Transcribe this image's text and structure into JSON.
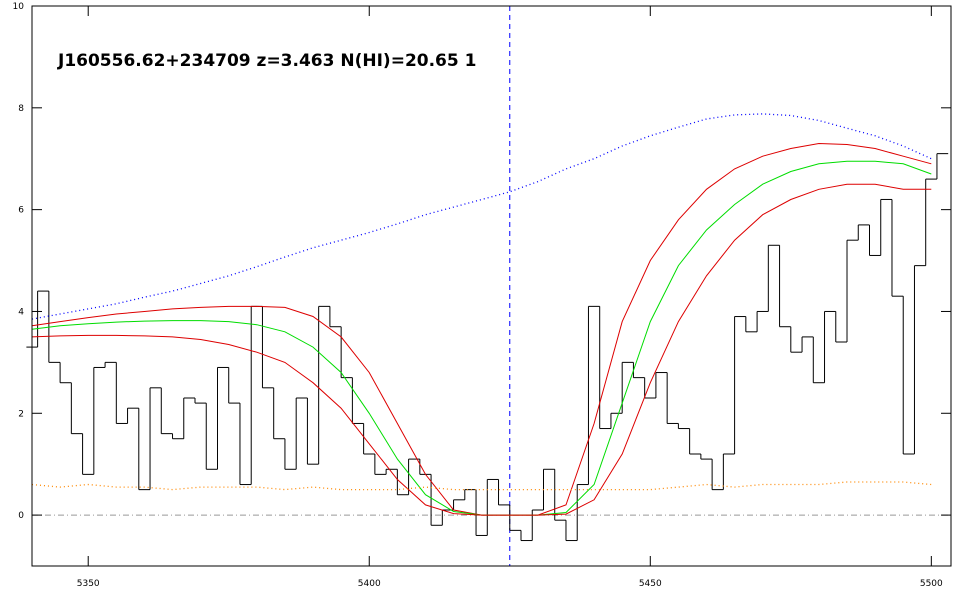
{
  "chart_data": {
    "type": "line",
    "annotation": "J160556.62+234709 z=3.463 N(HI)=20.65 1",
    "xlim": [
      5340,
      5503.5
    ],
    "ylim": [
      -1,
      10
    ],
    "xticks": [
      5350,
      5400,
      5450,
      5500
    ],
    "yticks": [
      0,
      2,
      4,
      6,
      8,
      10
    ],
    "vline": {
      "x": 5425,
      "color": "#0000ff"
    },
    "hline": {
      "y": 0,
      "color": "#999999"
    },
    "series": [
      {
        "style": "step",
        "color": "#000000",
        "x": [
          5340,
          5342,
          5344,
          5346,
          5348,
          5350,
          5352,
          5354,
          5356,
          5358,
          5360,
          5362,
          5364,
          5366,
          5368,
          5370,
          5372,
          5374,
          5376,
          5378,
          5380,
          5382,
          5384,
          5386,
          5388,
          5390,
          5392,
          5394,
          5396,
          5398,
          5400,
          5402,
          5404,
          5406,
          5408,
          5410,
          5412,
          5414,
          5416,
          5418,
          5420,
          5422,
          5424,
          5426,
          5428,
          5430,
          5432,
          5434,
          5436,
          5438,
          5440,
          5442,
          5444,
          5446,
          5448,
          5450,
          5452,
          5454,
          5456,
          5458,
          5460,
          5462,
          5464,
          5466,
          5468,
          5470,
          5472,
          5474,
          5476,
          5478,
          5480,
          5482,
          5484,
          5486,
          5488,
          5490,
          5492,
          5494,
          5496,
          5498,
          5500,
          5502
        ],
        "values": [
          3.3,
          4.4,
          3.0,
          2.6,
          1.6,
          0.8,
          2.9,
          3.0,
          1.8,
          2.1,
          0.5,
          2.5,
          1.6,
          1.5,
          2.3,
          2.2,
          0.9,
          2.9,
          2.2,
          0.6,
          4.1,
          2.5,
          1.5,
          0.9,
          2.3,
          1.0,
          4.1,
          3.7,
          2.7,
          1.8,
          1.2,
          0.8,
          0.9,
          0.4,
          1.1,
          0.8,
          -0.2,
          0.1,
          0.3,
          0.5,
          -0.4,
          0.7,
          0.2,
          -0.3,
          -0.5,
          0.1,
          0.9,
          -0.1,
          -0.5,
          0.6,
          4.1,
          1.7,
          2.0,
          3.0,
          2.7,
          2.3,
          2.8,
          1.8,
          1.7,
          1.2,
          1.1,
          0.5,
          1.2,
          3.9,
          3.6,
          4.0,
          5.3,
          3.7,
          3.2,
          3.5,
          2.6,
          4.0,
          3.4,
          5.4,
          5.7,
          5.1,
          6.2,
          4.3,
          1.2,
          4.9,
          6.6,
          7.1
        ]
      },
      {
        "style": "dotted",
        "color": "#0000ff",
        "x": [
          5340,
          5345,
          5350,
          5355,
          5360,
          5365,
          5370,
          5375,
          5380,
          5385,
          5390,
          5395,
          5400,
          5405,
          5410,
          5415,
          5420,
          5425,
          5430,
          5435,
          5440,
          5445,
          5450,
          5455,
          5460,
          5465,
          5470,
          5475,
          5480,
          5485,
          5490,
          5495,
          5500
        ],
        "values": [
          3.85,
          3.95,
          4.05,
          4.15,
          4.28,
          4.4,
          4.55,
          4.7,
          4.88,
          5.07,
          5.25,
          5.4,
          5.55,
          5.72,
          5.9,
          6.05,
          6.2,
          6.35,
          6.55,
          6.8,
          7.0,
          7.25,
          7.45,
          7.62,
          7.78,
          7.86,
          7.88,
          7.85,
          7.75,
          7.6,
          7.45,
          7.25,
          7.0
        ]
      },
      {
        "style": "solid",
        "color": "#dd0000",
        "x": [
          5340,
          5345,
          5350,
          5355,
          5360,
          5365,
          5370,
          5375,
          5380,
          5385,
          5390,
          5395,
          5400,
          5405,
          5410,
          5415,
          5420,
          5425,
          5430,
          5435,
          5440,
          5445,
          5450,
          5455,
          5460,
          5465,
          5470,
          5475,
          5480,
          5485,
          5490,
          5495,
          5500
        ],
        "values": [
          3.72,
          3.8,
          3.88,
          3.95,
          4.0,
          4.05,
          4.08,
          4.1,
          4.1,
          4.08,
          3.9,
          3.5,
          2.8,
          1.8,
          0.8,
          0.1,
          0,
          0,
          0,
          0.2,
          1.8,
          3.8,
          5.0,
          5.8,
          6.4,
          6.8,
          7.05,
          7.2,
          7.3,
          7.28,
          7.2,
          7.05,
          6.9
        ]
      },
      {
        "style": "solid",
        "color": "#00dd00",
        "x": [
          5340,
          5345,
          5350,
          5355,
          5360,
          5365,
          5370,
          5375,
          5380,
          5385,
          5390,
          5395,
          5400,
          5405,
          5410,
          5415,
          5420,
          5425,
          5430,
          5435,
          5440,
          5445,
          5450,
          5455,
          5460,
          5465,
          5470,
          5475,
          5480,
          5485,
          5490,
          5495,
          5500
        ],
        "values": [
          3.65,
          3.72,
          3.76,
          3.79,
          3.81,
          3.82,
          3.82,
          3.8,
          3.74,
          3.6,
          3.3,
          2.8,
          2.0,
          1.1,
          0.4,
          0.07,
          0,
          0,
          0,
          0.05,
          0.6,
          2.2,
          3.8,
          4.9,
          5.6,
          6.1,
          6.5,
          6.75,
          6.9,
          6.95,
          6.95,
          6.9,
          6.7
        ]
      },
      {
        "style": "solid",
        "color": "#dd0000",
        "x": [
          5340,
          5345,
          5350,
          5355,
          5360,
          5365,
          5370,
          5375,
          5380,
          5385,
          5390,
          5395,
          5400,
          5405,
          5410,
          5415,
          5420,
          5425,
          5430,
          5435,
          5440,
          5445,
          5450,
          5455,
          5460,
          5465,
          5470,
          5475,
          5480,
          5485,
          5490,
          5495,
          5500
        ],
        "values": [
          3.5,
          3.52,
          3.53,
          3.53,
          3.52,
          3.5,
          3.45,
          3.35,
          3.2,
          3.0,
          2.6,
          2.1,
          1.4,
          0.7,
          0.2,
          0.03,
          0,
          0,
          0,
          0.02,
          0.3,
          1.2,
          2.6,
          3.8,
          4.7,
          5.4,
          5.9,
          6.2,
          6.4,
          6.5,
          6.5,
          6.4,
          6.4
        ]
      },
      {
        "style": "dotted",
        "color": "#ff8800",
        "x": [
          5340,
          5345,
          5350,
          5355,
          5360,
          5365,
          5370,
          5375,
          5380,
          5385,
          5390,
          5395,
          5400,
          5405,
          5410,
          5415,
          5420,
          5425,
          5430,
          5435,
          5440,
          5445,
          5450,
          5455,
          5460,
          5465,
          5470,
          5475,
          5480,
          5485,
          5490,
          5495,
          5500
        ],
        "values": [
          0.6,
          0.55,
          0.6,
          0.55,
          0.55,
          0.5,
          0.55,
          0.55,
          0.55,
          0.5,
          0.55,
          0.5,
          0.5,
          0.5,
          0.55,
          0.5,
          0.5,
          0.5,
          0.5,
          0.5,
          0.5,
          0.5,
          0.5,
          0.55,
          0.6,
          0.55,
          0.6,
          0.6,
          0.6,
          0.65,
          0.65,
          0.65,
          0.6
        ]
      }
    ]
  }
}
